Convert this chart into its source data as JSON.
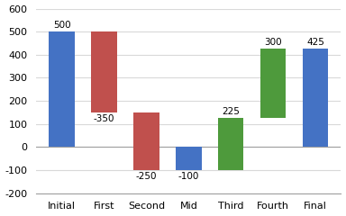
{
  "categories": [
    "Initial",
    "First",
    "Second",
    "Mid",
    "Third",
    "Fourth",
    "Final"
  ],
  "bar_bottoms": [
    0,
    150,
    -100,
    -100,
    -100,
    125,
    0
  ],
  "bar_heights": [
    500,
    350,
    250,
    100,
    225,
    300,
    425
  ],
  "bar_colors": [
    "#4472c4",
    "#c0504d",
    "#c0504d",
    "#4472c4",
    "#4e9a3c",
    "#4e9a3c",
    "#4472c4"
  ],
  "label_values": [
    500,
    -350,
    -250,
    -100,
    225,
    300,
    425
  ],
  "label_above": [
    true,
    false,
    false,
    false,
    true,
    true,
    true
  ],
  "ylim": [
    -200,
    600
  ],
  "yticks": [
    -200,
    -100,
    0,
    100,
    200,
    300,
    400,
    500,
    600
  ],
  "background_color": "#ffffff",
  "grid_color": "#d9d9d9",
  "bar_width": 0.6
}
